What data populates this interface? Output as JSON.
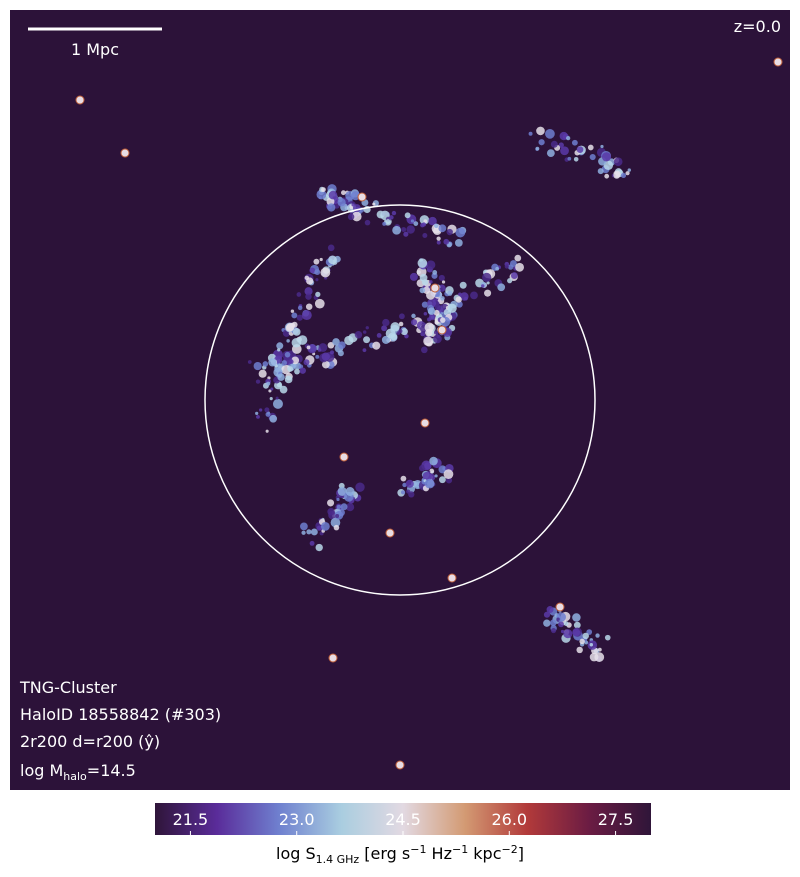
{
  "chart_data": {
    "type": "image",
    "scale_bar_label": "1 Mpc",
    "redshift_label": "z=0.0",
    "info_lines": [
      "TNG-Cluster",
      "HaloID 18558842 (#303)",
      "2r200 d=r200 (ŷ)"
    ],
    "mass_label": {
      "prefix": "log M",
      "sub": "halo",
      "suffix": "=14.5"
    },
    "colorbar": {
      "label": {
        "main": "log S",
        "sub": "1.4 GHz",
        "unit1": " [erg s",
        "exp1": "−1",
        "unit2": " Hz",
        "exp2": "−1",
        "unit3": " kpc",
        "exp3": "−2",
        "close": "]"
      },
      "clim": [
        21,
        28
      ],
      "ticks": [
        21.5,
        {
          "value": 23,
          "label": "23.0"
        },
        24.5,
        {
          "value": 26,
          "label": "26.0"
        },
        27.5
      ],
      "colormap": [
        "#2f1539",
        "#5a2c9a",
        "#6f80cf",
        "#a9cde0",
        "#e2d9e2",
        "#d39a73",
        "#b23a3a",
        "#6b1c43",
        "#2f1539"
      ]
    }
  }
}
